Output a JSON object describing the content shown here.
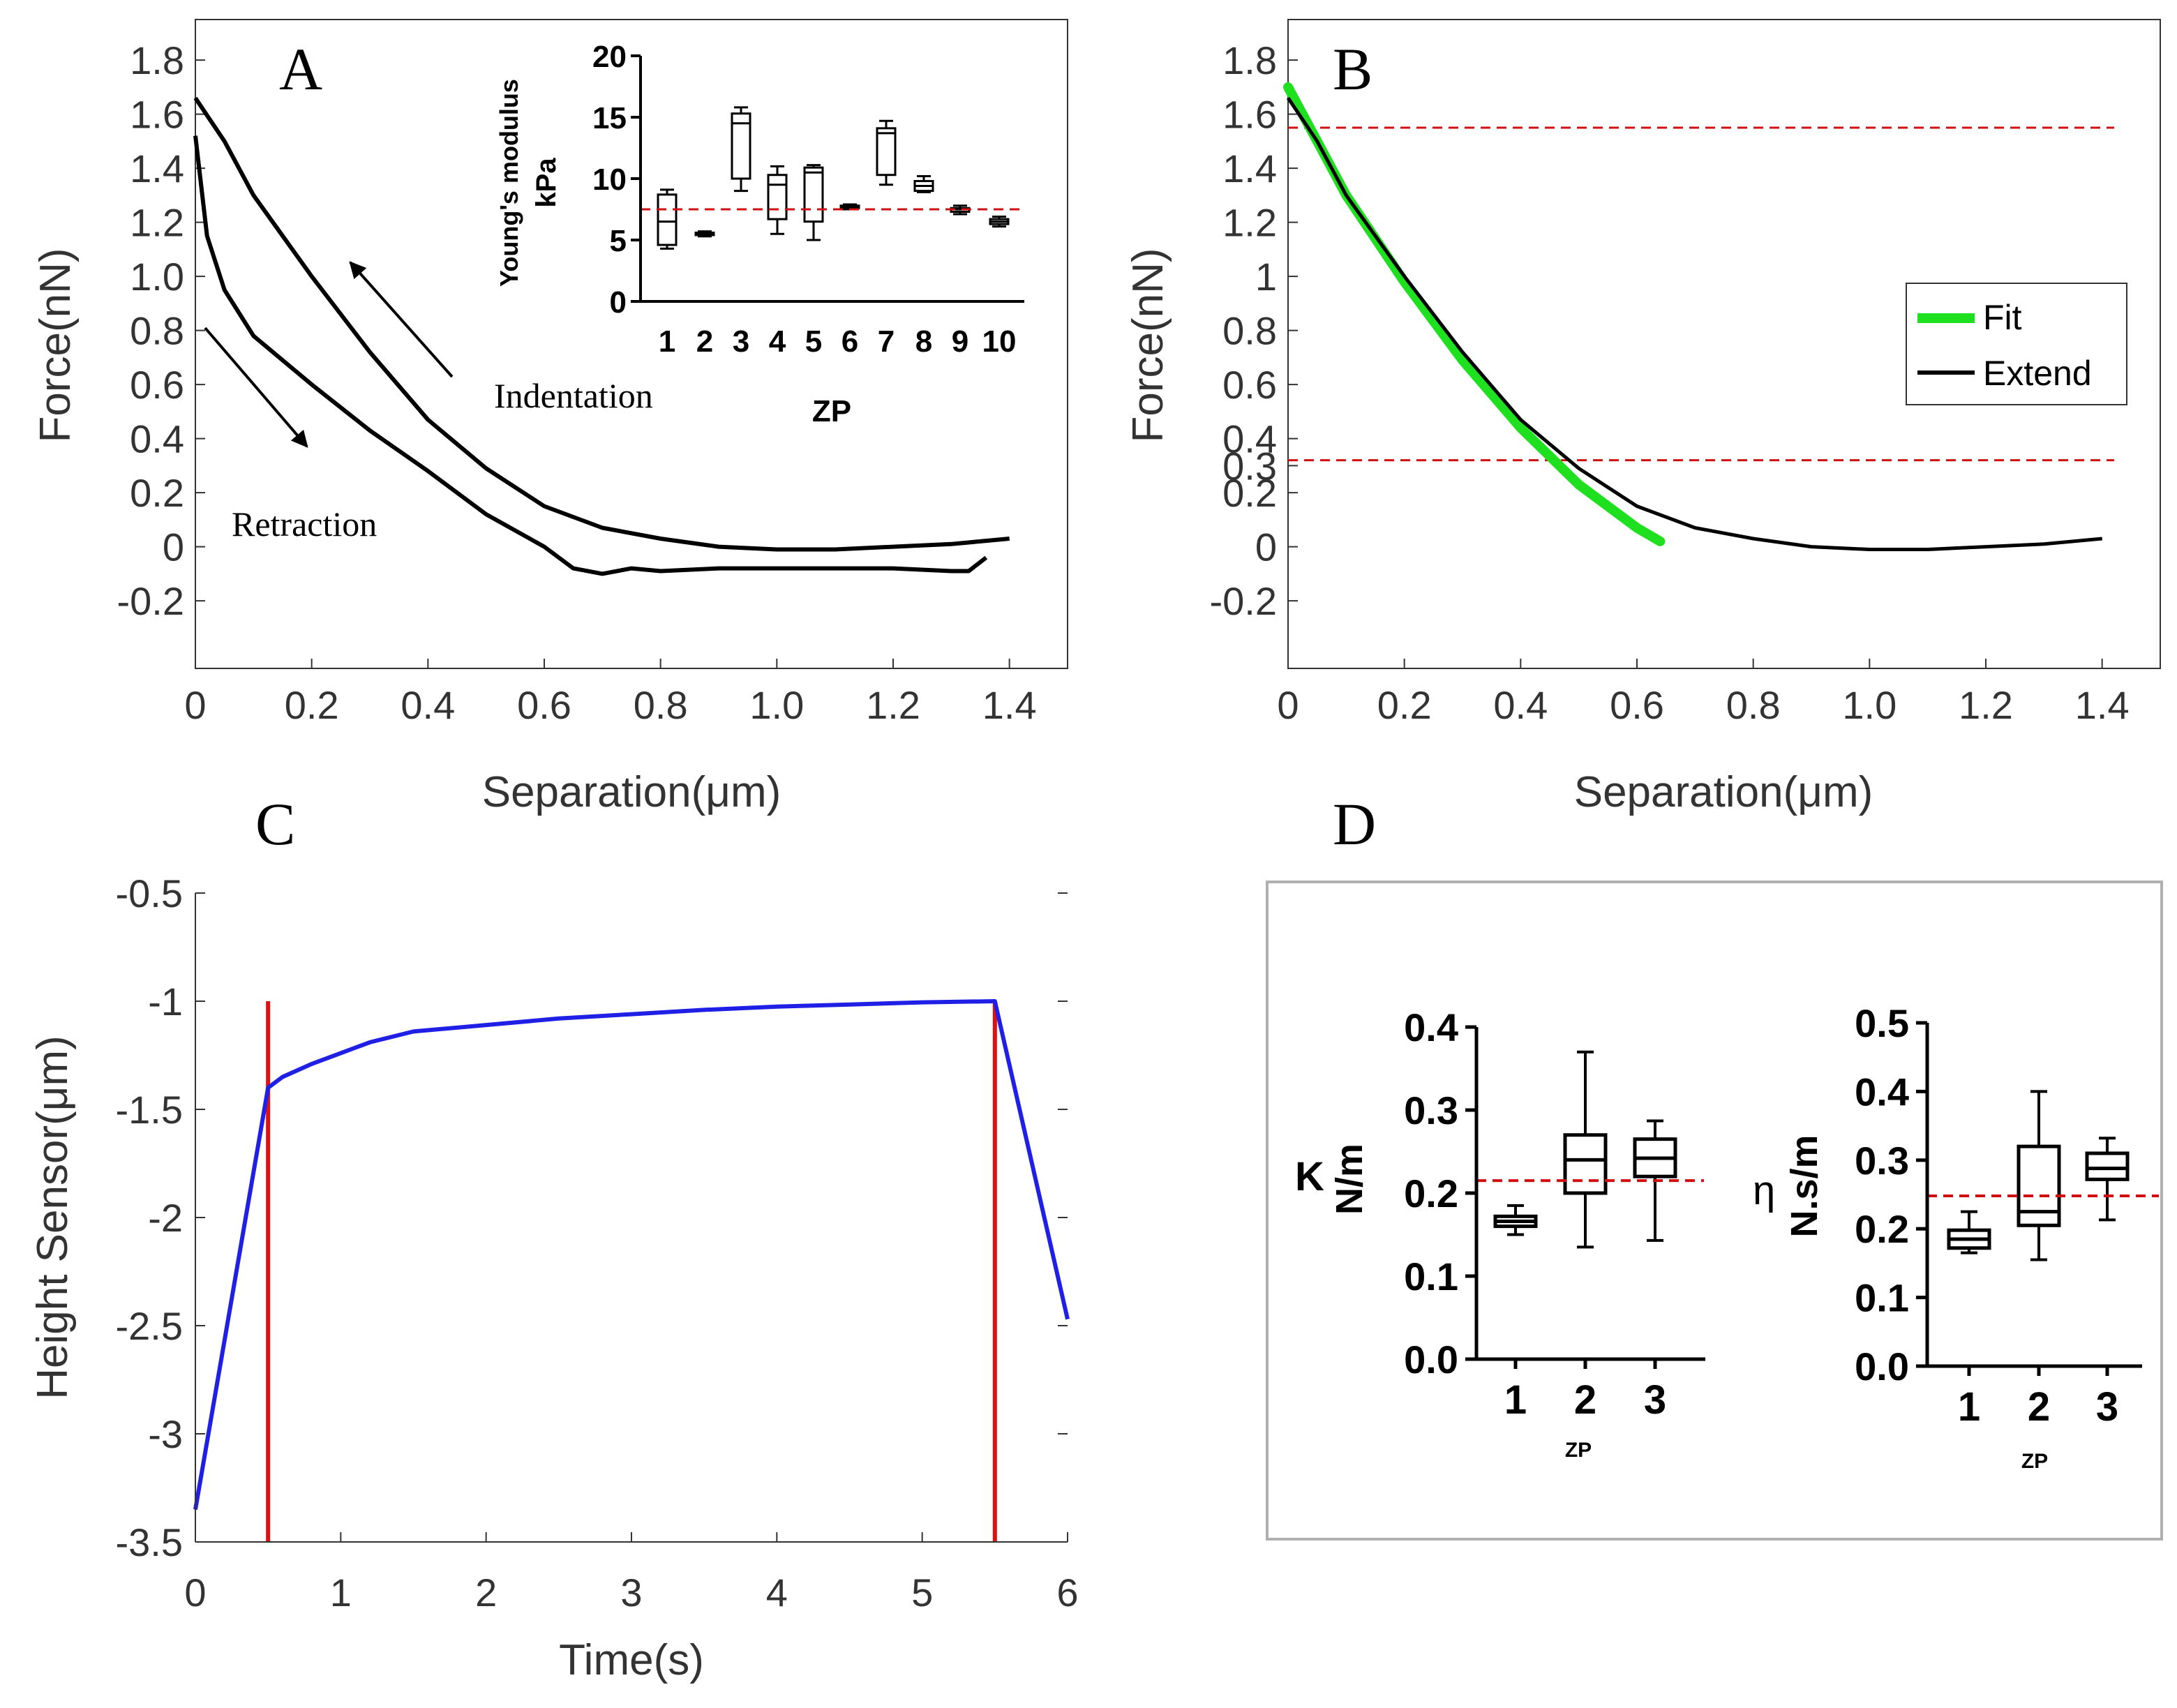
{
  "panels": {
    "A": {
      "label": "A",
      "xlabel": "Separation(μm)",
      "ylabel": "Force(nN)",
      "xticks": [
        "0",
        "0.2",
        "0.4",
        "0.6",
        "0.8",
        "1.0",
        "1.2",
        "1.4"
      ],
      "yticks": [
        "1.8",
        "1.6",
        "1.4",
        "1.2",
        "1.0",
        "0.8",
        "0.6",
        "0.4",
        "0.2",
        "0",
        "-0.2"
      ],
      "annotations": {
        "indentation": "Indentation",
        "retraction": "Retraction"
      },
      "inset": {
        "ylabel_line1": "Young's modulus",
        "ylabel_line2": "kPa",
        "xlabel": "ZP",
        "yticks": [
          "20",
          "15",
          "10",
          "5",
          "0"
        ],
        "xticks": [
          "1",
          "2",
          "3",
          "4",
          "5",
          "6",
          "7",
          "8",
          "9",
          "10"
        ]
      }
    },
    "B": {
      "label": "B",
      "xlabel": "Separation(μm)",
      "ylabel": "Force(nN)",
      "xticks": [
        "0",
        "0.2",
        "0.4",
        "0.6",
        "0.8",
        "1.0",
        "1.2",
        "1.4"
      ],
      "yticks": [
        "1.8",
        "1.6",
        "1.4",
        "1.2",
        "1",
        "0.8",
        "0.6",
        "0.4",
        "0.3",
        "0.2",
        "0",
        "-0.2"
      ],
      "legend": [
        "Fit",
        "Extend"
      ]
    },
    "C": {
      "label": "C",
      "xlabel": "Time(s)",
      "ylabel": "Height Sensor(μm)",
      "xticks": [
        "0",
        "1",
        "2",
        "3",
        "4",
        "5",
        "6"
      ],
      "yticks": [
        "-0.5",
        "-1",
        "-1.5",
        "-2",
        "-2.5",
        "-3",
        "-3.5"
      ]
    },
    "D": {
      "label": "D",
      "k_plot": {
        "ylabel_symbol": "K",
        "ylabel_unit": "N/m",
        "xlabel": "ZP",
        "yticks": [
          "0.4",
          "0.3",
          "0.2",
          "0.1",
          "0.0"
        ],
        "xticks": [
          "1",
          "2",
          "3"
        ]
      },
      "eta_plot": {
        "ylabel_symbol": "η",
        "ylabel_unit": "N.s/m",
        "xlabel": "ZP",
        "yticks": [
          "0.5",
          "0.4",
          "0.3",
          "0.2",
          "0.1",
          "0.0"
        ],
        "xticks": [
          "1",
          "2",
          "3"
        ]
      }
    }
  },
  "colors": {
    "curve": "#000000",
    "fit": "#1fe01f",
    "height": "#1f1fe6",
    "marker": "#e01010",
    "reference": "#d01010"
  },
  "chart_data": [
    {
      "panel": "A",
      "type": "line",
      "xlabel": "Separation(μm)",
      "ylabel": "Force(nN)",
      "xlim": [
        0,
        1.5
      ],
      "ylim": [
        -0.45,
        1.95
      ],
      "series": [
        {
          "name": "Indentation",
          "x": [
            0,
            0.05,
            0.1,
            0.2,
            0.3,
            0.4,
            0.5,
            0.6,
            0.7,
            0.8,
            0.9,
            1.0,
            1.1,
            1.2,
            1.3,
            1.35,
            1.4
          ],
          "y": [
            1.66,
            1.5,
            1.3,
            1.0,
            0.72,
            0.47,
            0.29,
            0.15,
            0.07,
            0.03,
            0.0,
            -0.01,
            -0.01,
            0.0,
            0.01,
            0.02,
            0.03
          ]
        },
        {
          "name": "Retraction",
          "x": [
            0,
            0.02,
            0.05,
            0.1,
            0.15,
            0.2,
            0.3,
            0.4,
            0.5,
            0.6,
            0.65,
            0.7,
            0.75,
            0.8,
            0.9,
            1.0,
            1.1,
            1.2,
            1.3,
            1.33,
            1.36
          ],
          "y": [
            1.52,
            1.15,
            0.95,
            0.78,
            0.69,
            0.6,
            0.43,
            0.28,
            0.12,
            0.0,
            -0.08,
            -0.1,
            -0.08,
            -0.09,
            -0.08,
            -0.08,
            -0.08,
            -0.08,
            -0.09,
            -0.09,
            -0.04
          ]
        }
      ],
      "inset": {
        "type": "box",
        "xlabel": "ZP",
        "ylabel": "Young's modulus kPa",
        "ylim": [
          0,
          20
        ],
        "reference_line": 7.5,
        "categories": [
          "1",
          "2",
          "3",
          "4",
          "5",
          "6",
          "7",
          "8",
          "9",
          "10"
        ],
        "boxes": [
          {
            "whislo": 4.3,
            "q1": 4.6,
            "med": 6.5,
            "q3": 8.7,
            "whishi": 9.1
          },
          {
            "whislo": 5.3,
            "q1": 5.4,
            "med": 5.5,
            "q3": 5.6,
            "whishi": 5.7
          },
          {
            "whislo": 9.0,
            "q1": 10.0,
            "med": 14.5,
            "q3": 15.3,
            "whishi": 15.8
          },
          {
            "whislo": 5.5,
            "q1": 6.7,
            "med": 9.5,
            "q3": 10.3,
            "whishi": 11.0
          },
          {
            "whislo": 5.0,
            "q1": 6.5,
            "med": 10.5,
            "q3": 10.9,
            "whishi": 11.1
          },
          {
            "whislo": 7.5,
            "q1": 7.6,
            "med": 7.7,
            "q3": 7.8,
            "whishi": 7.9
          },
          {
            "whislo": 9.5,
            "q1": 10.3,
            "med": 13.7,
            "q3": 14.1,
            "whishi": 14.7
          },
          {
            "whislo": 8.9,
            "q1": 9.0,
            "med": 9.4,
            "q3": 9.8,
            "whishi": 10.2
          },
          {
            "whislo": 7.1,
            "q1": 7.3,
            "med": 7.5,
            "q3": 7.6,
            "whishi": 7.8
          },
          {
            "whislo": 6.1,
            "q1": 6.3,
            "med": 6.5,
            "q3": 6.7,
            "whishi": 6.9
          }
        ]
      }
    },
    {
      "panel": "B",
      "type": "line",
      "xlabel": "Separation(μm)",
      "ylabel": "Force(nN)",
      "xlim": [
        0,
        1.5
      ],
      "ylim": [
        -0.45,
        1.95
      ],
      "reference_lines_y": [
        1.55,
        0.32
      ],
      "series": [
        {
          "name": "Fit",
          "x": [
            0,
            0.05,
            0.1,
            0.2,
            0.3,
            0.4,
            0.5,
            0.6,
            0.64
          ],
          "y": [
            1.7,
            1.5,
            1.3,
            0.98,
            0.69,
            0.44,
            0.23,
            0.07,
            0.02
          ]
        },
        {
          "name": "Extend",
          "x": [
            0,
            0.05,
            0.1,
            0.2,
            0.3,
            0.4,
            0.5,
            0.6,
            0.7,
            0.8,
            0.9,
            1.0,
            1.1,
            1.2,
            1.3,
            1.35,
            1.4
          ],
          "y": [
            1.66,
            1.5,
            1.3,
            1.0,
            0.72,
            0.47,
            0.29,
            0.15,
            0.07,
            0.03,
            0.0,
            -0.01,
            -0.01,
            0.0,
            0.01,
            0.02,
            0.03
          ]
        }
      ]
    },
    {
      "panel": "C",
      "type": "line",
      "xlabel": "Time(s)",
      "ylabel": "Height Sensor(μm)",
      "xlim": [
        0,
        6
      ],
      "ylim": [
        -3.5,
        -0.5
      ],
      "marker_lines_x": [
        0.5,
        5.5
      ],
      "marker_line_ytop": -1.0,
      "series": [
        {
          "x": [
            0,
            0.5,
            0.6,
            0.8,
            1.0,
            1.2,
            1.5,
            2,
            2.5,
            3,
            3.5,
            4,
            4.5,
            5,
            5.5,
            6
          ],
          "y": [
            -3.35,
            -1.4,
            -1.35,
            -1.29,
            -1.24,
            -1.19,
            -1.14,
            -1.11,
            -1.08,
            -1.06,
            -1.04,
            -1.025,
            -1.015,
            -1.005,
            -1.0,
            -2.47
          ]
        }
      ]
    },
    {
      "panel": "D",
      "type": "box",
      "xlabel": "ZP",
      "ylabel": "K N/m",
      "ylim": [
        0,
        0.4
      ],
      "reference_line": 0.215,
      "categories": [
        "1",
        "2",
        "3"
      ],
      "boxes": [
        {
          "whislo": 0.15,
          "q1": 0.16,
          "med": 0.166,
          "q3": 0.172,
          "whishi": 0.185
        },
        {
          "whislo": 0.135,
          "q1": 0.2,
          "med": 0.24,
          "q3": 0.27,
          "whishi": 0.37
        },
        {
          "whislo": 0.143,
          "q1": 0.22,
          "med": 0.242,
          "q3": 0.265,
          "whishi": 0.287
        }
      ]
    },
    {
      "panel": "D",
      "type": "box",
      "xlabel": "ZP",
      "ylabel": "η N.s/m",
      "ylim": [
        0,
        0.5
      ],
      "reference_line": 0.248,
      "categories": [
        "1",
        "2",
        "3"
      ],
      "boxes": [
        {
          "whislo": 0.165,
          "q1": 0.172,
          "med": 0.185,
          "q3": 0.198,
          "whishi": 0.225
        },
        {
          "whislo": 0.155,
          "q1": 0.205,
          "med": 0.225,
          "q3": 0.32,
          "whishi": 0.4
        },
        {
          "whislo": 0.213,
          "q1": 0.272,
          "med": 0.288,
          "q3": 0.31,
          "whishi": 0.332
        }
      ]
    }
  ]
}
